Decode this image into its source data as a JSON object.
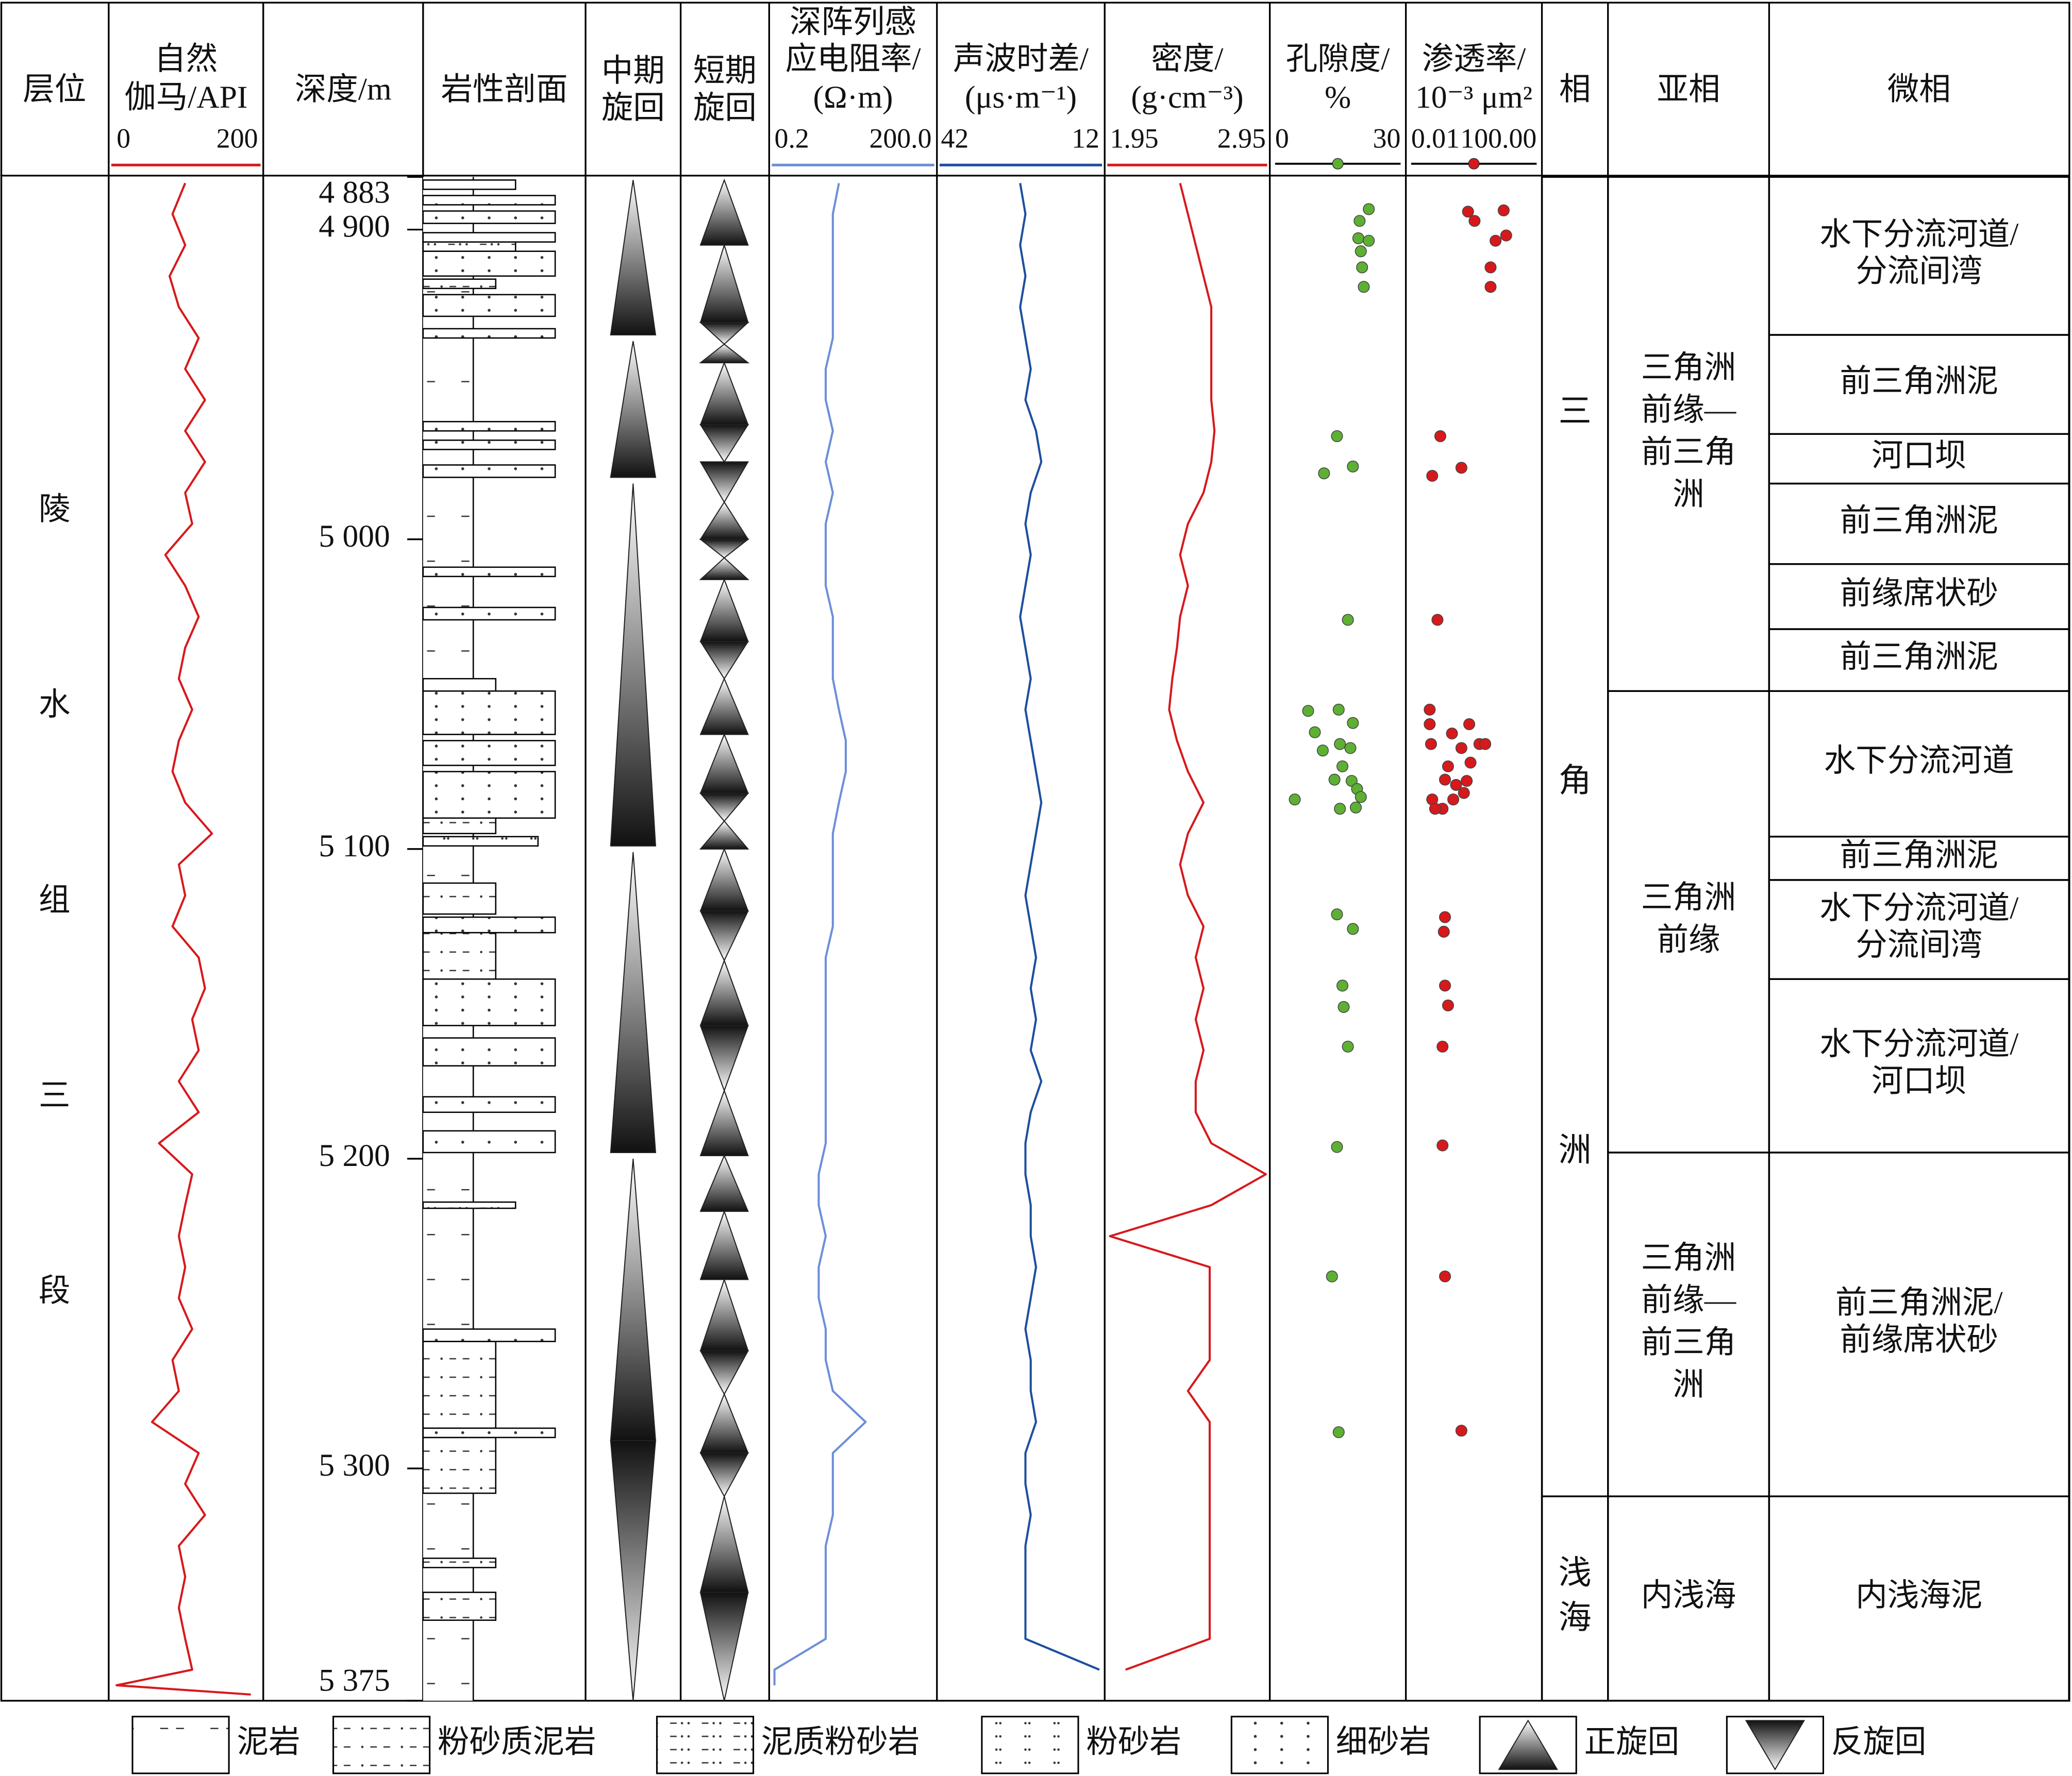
{
  "chart_data": {
    "type": "well_log",
    "headers": [
      [
        "层位"
      ],
      [
        "自然",
        "伽马/API"
      ],
      [
        "深度/m"
      ],
      [
        "岩性剖面"
      ],
      [
        "中期",
        "旋回"
      ],
      [
        "短期",
        "旋回"
      ],
      [
        "深阵列感",
        "应电阻率/",
        "(Ω·m)"
      ],
      [
        "声波时差/",
        "(μs·m⁻¹)"
      ],
      [
        "密度/",
        "(g·cm⁻³)"
      ],
      [
        "孔隙度/",
        "%"
      ],
      [
        "渗透率/",
        "10⁻³ μm²"
      ],
      [
        "相"
      ],
      [
        "亚相"
      ],
      [
        "微相"
      ]
    ],
    "ylim": [
      4883,
      5375
    ],
    "yticks": [
      {
        "value": 4883,
        "label": "4 883"
      },
      {
        "value": 4900,
        "label": "4 900"
      },
      {
        "value": 5000,
        "label": "5 000"
      },
      {
        "value": 5100,
        "label": "5 100"
      },
      {
        "value": 5200,
        "label": "5 200"
      },
      {
        "value": 5300,
        "label": "5 300"
      },
      {
        "value": 5375,
        "label": "5 375"
      }
    ],
    "formation": "陵水组三段",
    "depths": [
      4885,
      4895,
      4905,
      4915,
      4925,
      4935,
      4945,
      4955,
      4965,
      4975,
      4985,
      4995,
      5005,
      5015,
      5025,
      5035,
      5045,
      5055,
      5065,
      5075,
      5085,
      5095,
      5105,
      5115,
      5125,
      5135,
      5145,
      5155,
      5165,
      5175,
      5185,
      5195,
      5205,
      5215,
      5225,
      5235,
      5245,
      5255,
      5265,
      5275,
      5285,
      5295,
      5305,
      5315,
      5325,
      5335,
      5345,
      5355,
      5365,
      5370,
      5373
    ],
    "curves": [
      {
        "xlim": [
          0,
          200
        ],
        "xticks": [
          0,
          200
        ],
        "color": "#d7191c",
        "log": false,
        "values": [
          97,
          79,
          97,
          75,
          88,
          116,
          97,
          125,
          97,
          125,
          97,
          107,
          69,
          97,
          116,
          97,
          88,
          107,
          88,
          79,
          97,
          135,
          88,
          97,
          79,
          116,
          125,
          107,
          116,
          88,
          116,
          60,
          107,
          97,
          88,
          97,
          88,
          107,
          79,
          88,
          50,
          116,
          97,
          125,
          88,
          97,
          88,
          97,
          107,
          0,
          190
        ]
      },
      {
        "xlim": [
          0.2,
          200
        ],
        "xticks": [
          0.2,
          {
            "value": 200,
            "label": "200.0"
          }
        ],
        "color": "#6d8fd8",
        "log": true,
        "values": [
          3.4,
          2.6,
          2.6,
          2.6,
          2.6,
          2.6,
          1.9,
          1.9,
          2.6,
          1.9,
          2.6,
          1.9,
          1.9,
          1.9,
          2.6,
          2.6,
          2.6,
          3.4,
          4.6,
          4.6,
          3.4,
          2.6,
          2.6,
          2.6,
          2.6,
          1.9,
          1.9,
          1.9,
          1.9,
          1.9,
          1.9,
          1.9,
          1.4,
          1.4,
          1.9,
          1.4,
          1.4,
          1.9,
          1.9,
          2.6,
          11,
          2.6,
          2.6,
          2.6,
          1.9,
          1.9,
          1.9,
          1.9,
          0.2,
          0.2,
          null
        ]
      },
      {
        "xlim": [
          42,
          12
        ],
        "xticks": [
          42,
          12
        ],
        "color": "#1d4f9e",
        "log": false,
        "values": [
          27,
          26,
          27,
          26,
          27,
          26,
          25,
          26,
          24,
          23,
          25,
          26,
          25,
          26,
          27,
          26,
          25,
          26,
          25,
          24,
          23,
          24,
          25,
          26,
          25,
          24,
          25,
          24,
          25,
          23,
          25,
          26,
          26,
          25,
          25,
          24,
          25,
          26,
          25,
          25,
          24,
          26,
          26,
          25,
          26,
          26,
          26,
          26,
          12,
          null,
          null
        ]
      },
      {
        "xlim": [
          1.95,
          2.95
        ],
        "xticks": [
          1.95,
          2.95
        ],
        "color": "#d7191c",
        "log": false,
        "values": [
          2.4,
          2.45,
          2.5,
          2.55,
          2.6,
          2.6,
          2.6,
          2.6,
          2.62,
          2.6,
          2.55,
          2.45,
          2.4,
          2.45,
          2.4,
          2.38,
          2.35,
          2.33,
          2.38,
          2.45,
          2.55,
          2.45,
          2.4,
          2.45,
          2.55,
          2.5,
          2.55,
          2.5,
          2.55,
          2.5,
          2.5,
          2.6,
          2.95,
          2.6,
          1.95,
          2.59,
          2.59,
          2.59,
          2.59,
          2.45,
          2.59,
          2.59,
          2.59,
          2.59,
          2.59,
          2.59,
          2.59,
          2.59,
          2.05,
          null,
          null
        ]
      }
    ],
    "points": [
      {
        "xlim": [
          0,
          30
        ],
        "xticks": [
          0,
          30
        ],
        "color": "#5db033",
        "log": false,
        "depths": [
          4893.4,
          4897.2,
          4902.8,
          4903.6,
          4907.0,
          4912.2,
          4918.5,
          4966.7,
          4978.7,
          4976.5,
          5026.0,
          5055.4,
          5055.0,
          5062.3,
          5059.3,
          5068.2,
          5066.1,
          5067.4,
          5073.3,
          5078.0,
          5077.6,
          5080.6,
          5083.2,
          5084.0,
          5087.0,
          5086.6,
          5121.1,
          5125.8,
          5144.1,
          5151.0,
          5163.8,
          5196.2,
          5238.0,
          5288.3
        ],
        "values": [
          22.4,
          20.2,
          19.9,
          22.4,
          20.5,
          20.8,
          21.2,
          14.8,
          11.7,
          18.6,
          17.4,
          7.9,
          15.2,
          9.5,
          18.6,
          11.4,
          15.5,
          18.0,
          16.1,
          18.3,
          14.2,
          19.6,
          20.5,
          4.7,
          15.5,
          19.3,
          14.8,
          18.6,
          16.1,
          16.4,
          17.4,
          14.8,
          13.6,
          15.2
        ]
      },
      {
        "xlim": [
          0.01,
          100
        ],
        "xticks": [
          0.01,
          {
            "value": 100,
            "label": "100.00"
          }
        ],
        "color": "#d7191c",
        "log": true,
        "depths": [
          4894.2,
          4893.8,
          4897.2,
          4901.9,
          4903.6,
          4912.2,
          4918.5,
          4966.7,
          4979.5,
          4976.9,
          5026.0,
          5055.0,
          5059.7,
          5062.7,
          5059.7,
          5066.1,
          5067.4,
          5066.1,
          5066.1,
          5073.3,
          5072.1,
          5077.6,
          5079.3,
          5078.0,
          5084.0,
          5084.0,
          5081.9,
          5087.0,
          5087.0,
          5122.0,
          5126.7,
          5144.1,
          5150.5,
          5163.8,
          5195.7,
          5238.0,
          5287.8
        ],
        "values": [
          0.65,
          8.9,
          1.05,
          10.7,
          4.9,
          3.4,
          3.4,
          0.085,
          0.047,
          0.4,
          0.069,
          0.039,
          0.039,
          0.2,
          0.71,
          0.043,
          0.4,
          1.5,
          2.3,
          0.15,
          0.78,
          0.12,
          0.27,
          0.59,
          0.047,
          0.22,
          0.48,
          0.1,
          0.058,
          0.12,
          0.11,
          0.12,
          0.15,
          0.1,
          0.1,
          0.12,
          0.4
        ]
      }
    ],
    "mid_cycles": {
      "positive": [
        [
          4884,
          4934
        ],
        [
          4936,
          4980
        ],
        [
          4982,
          5099
        ],
        [
          5101,
          5198
        ],
        [
          5200,
          5291
        ]
      ],
      "negative": [
        [
          5291,
          5375
        ]
      ]
    },
    "short_cycles": {
      "positive": [
        [
          4884,
          4905
        ],
        [
          4905,
          4930
        ],
        [
          4937,
          4943
        ],
        [
          4943,
          4963
        ],
        [
          4988,
          5000
        ],
        [
          5006,
          5013
        ],
        [
          5013,
          5033
        ],
        [
          5045,
          5063
        ],
        [
          5063,
          5082
        ],
        [
          5091,
          5100
        ],
        [
          5100,
          5120
        ],
        [
          5136,
          5157
        ],
        [
          5178,
          5199
        ],
        [
          5199,
          5217
        ],
        [
          5217,
          5239
        ],
        [
          5239,
          5262
        ],
        [
          5276,
          5295
        ],
        [
          5309,
          5340
        ]
      ],
      "negative": [
        [
          4930,
          4937
        ],
        [
          4963,
          4975
        ],
        [
          4975,
          4988
        ],
        [
          5000,
          5006
        ],
        [
          5033,
          5045
        ],
        [
          5082,
          5091
        ],
        [
          5120,
          5136
        ],
        [
          5157,
          5178
        ],
        [
          5262,
          5276
        ],
        [
          5295,
          5309
        ],
        [
          5340,
          5375
        ]
      ]
    },
    "facies": [
      {
        "name": "三角洲",
        "top": 4883,
        "base": 5309
      },
      {
        "name": "浅海",
        "top": 5309,
        "base": 5375
      }
    ],
    "subfacies": [
      {
        "name": "三角洲前缘—前三角洲",
        "top": 4883,
        "base": 5049
      },
      {
        "name": "三角洲前缘",
        "top": 5049,
        "base": 5198
      },
      {
        "name": "三角洲前缘—前三角洲",
        "top": 5198,
        "base": 5309
      },
      {
        "name": "内浅海",
        "top": 5309,
        "base": 5375
      }
    ],
    "microfacies": [
      {
        "name": "水下分流河道/分流间湾",
        "top": 4883,
        "base": 4934
      },
      {
        "name": "前三角洲泥",
        "top": 4934,
        "base": 4966
      },
      {
        "name": "河口坝",
        "top": 4966,
        "base": 4982
      },
      {
        "name": "前三角洲泥",
        "top": 4982,
        "base": 5008
      },
      {
        "name": "前缘席状砂",
        "top": 5008,
        "base": 5029
      },
      {
        "name": "前三角洲泥",
        "top": 5029,
        "base": 5049
      },
      {
        "name": "水下分流河道",
        "top": 5049,
        "base": 5096
      },
      {
        "name": "前三角洲泥",
        "top": 5096,
        "base": 5110
      },
      {
        "name": "水下分流河道/分流间湾",
        "top": 5110,
        "base": 5142
      },
      {
        "name": "水下分流河道/河口坝",
        "top": 5142,
        "base": 5198
      },
      {
        "name": "前三角洲泥/前缘席状砂",
        "top": 5198,
        "base": 5309
      },
      {
        "name": "内浅海泥",
        "top": 5309,
        "base": 5375
      }
    ],
    "legend": [
      {
        "label": "泥岩",
        "beds": [
          [
            4883,
            5375
          ]
        ]
      },
      {
        "label": "粉砂质泥岩",
        "beds": [
          [
            4916,
            4919
          ],
          [
            5045,
            5049
          ],
          [
            5090,
            5095
          ],
          [
            5111,
            5121
          ],
          [
            5127,
            5142
          ],
          [
            5259,
            5287
          ],
          [
            5290,
            5308
          ],
          [
            5329,
            5332
          ],
          [
            5340,
            5349
          ]
        ]
      },
      {
        "label": "泥质粉砂岩",
        "beds": [
          [
            4884,
            4887
          ],
          [
            4904,
            4907
          ],
          [
            5214,
            5216
          ]
        ]
      },
      {
        "label": "粉砂岩",
        "beds": [
          [
            5096,
            5099
          ]
        ]
      },
      {
        "label": "细砂岩",
        "beds": [
          [
            4889,
            4892
          ],
          [
            4894,
            4898
          ],
          [
            4901,
            4904
          ],
          [
            4907,
            4915
          ],
          [
            4921,
            4928
          ],
          [
            4932,
            4935
          ],
          [
            4962,
            4965
          ],
          [
            4968,
            4971
          ],
          [
            4976,
            4980
          ],
          [
            5009,
            5012
          ],
          [
            5022,
            5026
          ],
          [
            5049,
            5063
          ],
          [
            5065,
            5073
          ],
          [
            5075,
            5090
          ],
          [
            5122,
            5127
          ],
          [
            5142,
            5157
          ],
          [
            5161,
            5170
          ],
          [
            5180,
            5185
          ],
          [
            5191,
            5198
          ],
          [
            5255,
            5259
          ],
          [
            5287,
            5290
          ]
        ]
      },
      {
        "label": "正旋回"
      },
      {
        "label": "反旋回"
      }
    ]
  }
}
